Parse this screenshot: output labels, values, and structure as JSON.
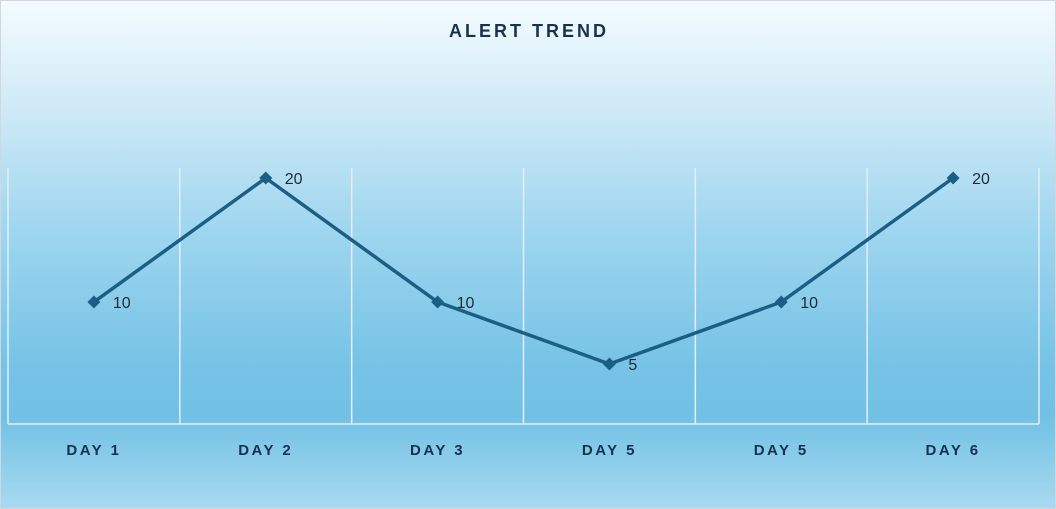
{
  "chart_data": {
    "type": "line",
    "title": "ALERT TREND",
    "categories": [
      "DAY 1",
      "DAY 2",
      "DAY 3",
      "DAY 5",
      "DAY 5",
      "DAY 6"
    ],
    "series": [
      {
        "values": [
          10,
          20,
          10,
          5,
          10,
          20
        ]
      }
    ],
    "ylim": [
      0,
      25
    ],
    "grid": "vertical",
    "legend": "none",
    "data_labels": "right",
    "colors": {
      "line": "#1b5f85",
      "grid": "#e4eef4"
    }
  }
}
